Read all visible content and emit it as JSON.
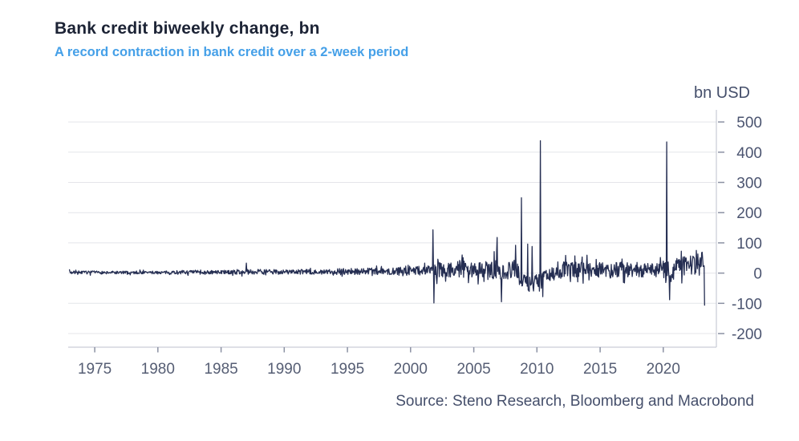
{
  "colors": {
    "background": "#ffffff",
    "title": "#1c2335",
    "subtitle": "#45a0e8",
    "series": "#252e52",
    "axis_text": "#4b5470",
    "gridline": "#e4e5e9",
    "axis_line": "#c9ccd6",
    "tick_mark": "#8b91a3"
  },
  "chart_data": {
    "type": "line",
    "title": "Bank credit biweekly change, bn",
    "subtitle": "A record contraction in bank credit over a 2-week period",
    "unit_label": "bn USD",
    "source": "Source: Steno Research, Bloomberg and Macrobond",
    "grid": "horizontal",
    "legend": "none",
    "axis_side": "right",
    "x_ticks": [
      1975,
      1980,
      1985,
      1990,
      1995,
      2000,
      2005,
      2010,
      2015,
      2020
    ],
    "y_ticks": [
      500,
      400,
      300,
      200,
      100,
      0,
      -100,
      -200
    ],
    "xlim": [
      1972.9,
      2024.2
    ],
    "ylim": [
      -245,
      540
    ],
    "frequency_per_year": 26,
    "series": [
      {
        "name": "Bank credit biweekly change (bn USD)",
        "color": "#252e52",
        "start_year": 1973.0,
        "end_year": 2023.25,
        "seed": 7,
        "envelope": [
          {
            "from": 1973.0,
            "to": 1981.0,
            "mean": 2,
            "amp": 5
          },
          {
            "from": 1981.0,
            "to": 1986.0,
            "mean": 3,
            "amp": 6
          },
          {
            "from": 1986.0,
            "to": 1994.0,
            "mean": 4,
            "amp": 8
          },
          {
            "from": 1994.0,
            "to": 1999.0,
            "mean": 6,
            "amp": 11
          },
          {
            "from": 1999.0,
            "to": 2002.0,
            "mean": 9,
            "amp": 18
          },
          {
            "from": 2002.0,
            "to": 2006.0,
            "mean": 12,
            "amp": 26
          },
          {
            "from": 2006.0,
            "to": 2008.6,
            "mean": 10,
            "amp": 33
          },
          {
            "from": 2008.6,
            "to": 2010.2,
            "mean": -32,
            "amp": 28
          },
          {
            "from": 2010.2,
            "to": 2012.0,
            "mean": -4,
            "amp": 24
          },
          {
            "from": 2012.0,
            "to": 2020.0,
            "mean": 12,
            "amp": 26
          },
          {
            "from": 2020.0,
            "to": 2021.0,
            "mean": 5,
            "amp": 38
          },
          {
            "from": 2021.0,
            "to": 2022.3,
            "mean": 25,
            "amp": 32
          },
          {
            "from": 2022.3,
            "to": 2023.3,
            "mean": 35,
            "amp": 42
          }
        ],
        "spikes": [
          {
            "year": 1987.0,
            "value": 33
          },
          {
            "year": 2001.77,
            "value": 143
          },
          {
            "year": 2001.85,
            "value": -99
          },
          {
            "year": 2006.85,
            "value": 118
          },
          {
            "year": 2007.2,
            "value": -95
          },
          {
            "year": 2008.3,
            "value": 92
          },
          {
            "year": 2008.77,
            "value": 249
          },
          {
            "year": 2009.25,
            "value": 96
          },
          {
            "year": 2009.6,
            "value": 88
          },
          {
            "year": 2010.25,
            "value": 438
          },
          {
            "year": 2010.45,
            "value": -78
          },
          {
            "year": 2020.25,
            "value": 434
          },
          {
            "year": 2020.5,
            "value": -88
          },
          {
            "year": 2023.25,
            "value": -106
          }
        ]
      }
    ]
  }
}
